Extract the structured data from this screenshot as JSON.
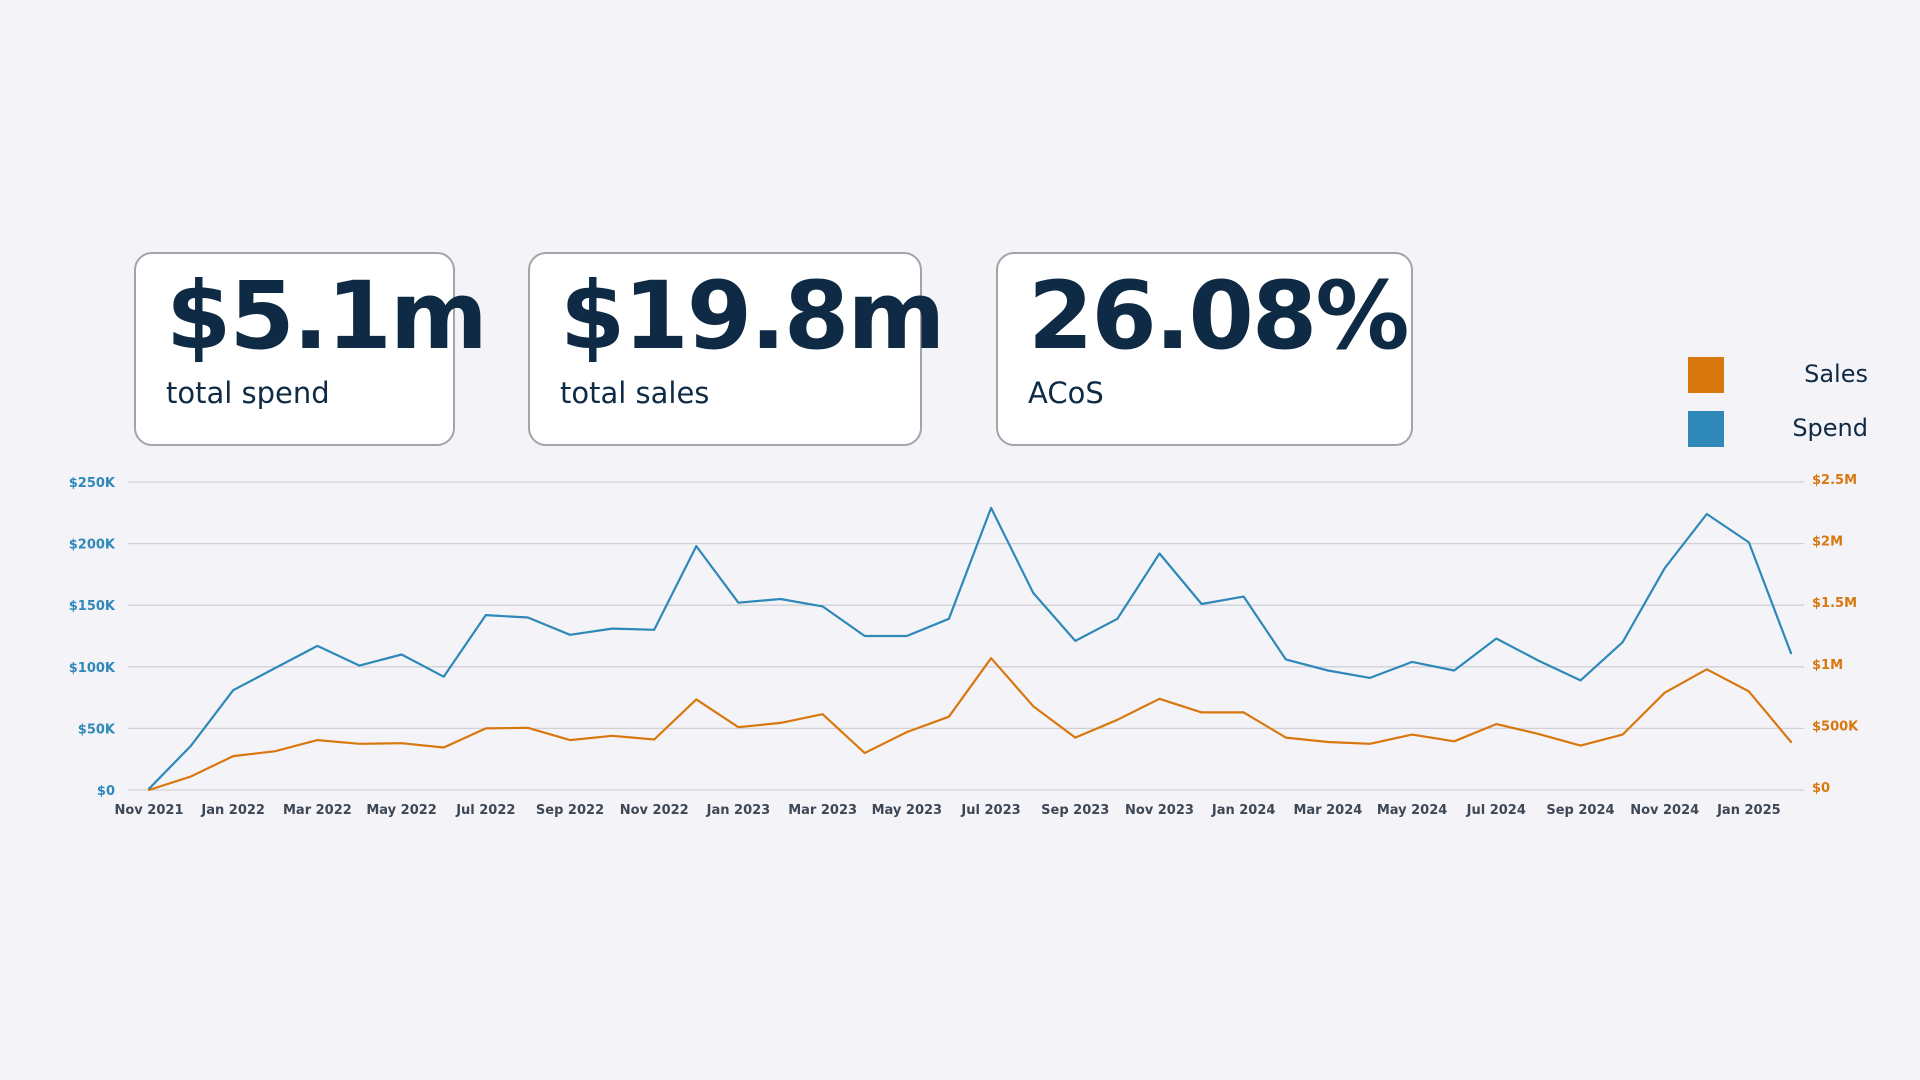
{
  "kpis": {
    "spend": {
      "value": "$5.1m",
      "label": "total spend"
    },
    "sales": {
      "value": "$19.8m",
      "label": "total sales"
    },
    "acos": {
      "value": "26.08%",
      "label": "ACoS"
    }
  },
  "legend": {
    "sales": {
      "label": "Sales",
      "color": "#d9770f"
    },
    "spend": {
      "label": "Spend",
      "color": "#2e88b8"
    }
  },
  "chart_data": {
    "type": "line",
    "title": "",
    "xlabel": "",
    "ylabel": "",
    "grid": true,
    "x": [
      "Nov 2021",
      "Dec 2021",
      "Jan 2022",
      "Feb 2022",
      "Mar 2022",
      "Apr 2022",
      "May 2022",
      "Jun 2022",
      "Jul 2022",
      "Aug 2022",
      "Sep 2022",
      "Oct 2022",
      "Nov 2022",
      "Dec 2022",
      "Jan 2023",
      "Feb 2023",
      "Mar 2023",
      "Apr 2023",
      "May 2023",
      "Jun 2023",
      "Jul 2023",
      "Aug 2023",
      "Sep 2023",
      "Oct 2023",
      "Nov 2023",
      "Dec 2023",
      "Jan 2024",
      "Feb 2024",
      "Mar 2024",
      "Apr 2024",
      "May 2024",
      "Jun 2024",
      "Jul 2024",
      "Aug 2024",
      "Sep 2024",
      "Oct 2024",
      "Nov 2024",
      "Dec 2024",
      "Jan 2025",
      "Feb 2025"
    ],
    "x_tick_labels": [
      "Nov 2021",
      "Jan 2022",
      "Mar 2022",
      "May 2022",
      "Jul 2022",
      "Sep 2022",
      "Nov 2022",
      "Jan 2023",
      "Mar 2023",
      "May 2023",
      "Jul 2023",
      "Sep 2023",
      "Nov 2023",
      "Jan 2024",
      "Mar 2024",
      "May 2024",
      "Jul 2024",
      "Sep 2024",
      "Nov 2024",
      "Jan 2025"
    ],
    "y_left": {
      "ylim": [
        0,
        250000
      ],
      "ticks": [
        0,
        50000,
        100000,
        150000,
        200000,
        250000
      ],
      "tick_labels": [
        "$0",
        "$50K",
        "$100K",
        "$150K",
        "$200K",
        "$250K"
      ],
      "color": "#2e88b8"
    },
    "y_right": {
      "ylim": [
        0,
        2500000
      ],
      "ticks": [
        0,
        500000,
        1000000,
        1500000,
        2000000,
        2500000
      ],
      "tick_labels": [
        "$0",
        "$500K",
        "$1M",
        "$1.5M",
        "$2M",
        "$2.5M"
      ],
      "color": "#d9770f"
    },
    "series": [
      {
        "name": "Spend",
        "axis": "left",
        "color": "#2e88b8",
        "values": [
          1000,
          36000,
          81000,
          99000,
          117000,
          101000,
          110000,
          92000,
          142000,
          140000,
          126000,
          131000,
          130000,
          198000,
          152000,
          155000,
          149000,
          125000,
          125000,
          139000,
          229000,
          160000,
          121000,
          139000,
          192000,
          151000,
          157000,
          106000,
          97000,
          91000,
          104000,
          97000,
          123000,
          105000,
          89000,
          120000,
          180000,
          224000,
          201000,
          111000
        ]
      },
      {
        "name": "Sales",
        "axis": "right",
        "color": "#d9770f",
        "values": [
          0,
          110000,
          275000,
          315000,
          405000,
          375000,
          380000,
          345000,
          500000,
          505000,
          405000,
          440000,
          410000,
          735000,
          510000,
          545000,
          615000,
          300000,
          470000,
          595000,
          1070000,
          680000,
          425000,
          570000,
          740000,
          630000,
          630000,
          425000,
          390000,
          375000,
          450000,
          395000,
          535000,
          455000,
          360000,
          450000,
          790000,
          980000,
          800000,
          390000
        ]
      }
    ]
  }
}
